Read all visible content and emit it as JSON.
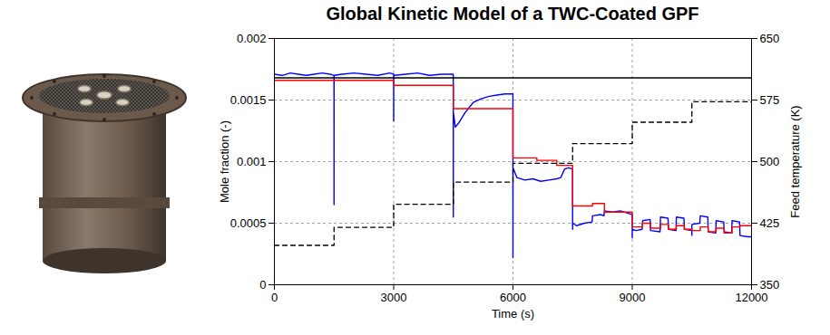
{
  "chart_data": {
    "type": "line",
    "title": "Global Kinetic Model of a TWC-Coated GPF",
    "x_label": "Time (s)",
    "y_label": "Mole fraction (-)",
    "y2_label": "Feed temperature (K)",
    "xlim": [
      0,
      12000
    ],
    "xticks": [
      0,
      3000,
      6000,
      9000,
      12000
    ],
    "ylim": [
      0,
      0.002
    ],
    "yticks": [
      0,
      0.0005,
      0.001,
      0.0015,
      0.002
    ],
    "y2lim": [
      350,
      650
    ],
    "y2ticks": [
      350,
      425,
      500,
      575,
      650
    ],
    "grid": true,
    "series": [
      {
        "color": "#0000ff",
        "line_style": "solid",
        "x": [
          0,
          200,
          400,
          600,
          800,
          1000,
          1200,
          1400,
          1499,
          1500,
          1501,
          1700,
          2000,
          2300,
          2600,
          2900,
          2999,
          3000,
          3001,
          3300,
          3600,
          3900,
          4200,
          4499,
          4500,
          4501,
          4550,
          4650,
          4800,
          5000,
          5200,
          5400,
          5600,
          5800,
          5999,
          6000,
          6001,
          6100,
          6300,
          6500,
          6700,
          6900,
          7100,
          7200,
          7300,
          7400,
          7499,
          7500,
          7501,
          7600,
          7800,
          7990,
          8000,
          8200,
          8290,
          8300,
          8500,
          8700,
          8900,
          8999,
          9000,
          9001,
          9100,
          9250,
          9260,
          9450,
          9460,
          9700,
          9710,
          9900,
          9910,
          10100,
          10110,
          10300,
          10310,
          10499,
          10500,
          10501,
          10700,
          10710,
          10900,
          10910,
          11100,
          11110,
          11300,
          11310,
          11500,
          11510,
          11700,
          11710,
          11900,
          12000
        ],
        "values": [
          0.00171,
          0.0017,
          0.00172,
          0.00171,
          0.0017,
          0.00171,
          0.00172,
          0.00171,
          0.0017,
          0.00065,
          0.0017,
          0.00171,
          0.00172,
          0.00171,
          0.0017,
          0.00172,
          0.00171,
          0.00133,
          0.0017,
          0.00171,
          0.00172,
          0.0017,
          0.00171,
          0.00171,
          0.00055,
          0.0014,
          0.00128,
          0.00132,
          0.0014,
          0.00148,
          0.00151,
          0.00153,
          0.00154,
          0.00155,
          0.00155,
          0.00022,
          0.00095,
          0.00087,
          0.00085,
          0.00086,
          0.00084,
          0.00085,
          0.00086,
          0.00087,
          0.00094,
          0.00095,
          0.00094,
          0.00045,
          0.0005,
          0.00048,
          0.0005,
          0.00051,
          0.00056,
          0.00057,
          0.00056,
          0.0006,
          0.00059,
          0.0006,
          0.00058,
          0.00057,
          0.00038,
          0.00045,
          0.00044,
          0.00045,
          0.00052,
          0.00053,
          0.00044,
          0.00043,
          0.00055,
          0.00054,
          0.00045,
          0.00044,
          0.00055,
          0.00054,
          0.00045,
          0.00044,
          0.0004,
          0.00049,
          0.0005,
          0.00056,
          0.00055,
          0.00043,
          0.00042,
          0.00052,
          0.00051,
          0.00043,
          0.00042,
          0.00052,
          0.00051,
          0.0004,
          0.00039,
          0.00039
        ]
      },
      {
        "color": "#ff0000",
        "line_style": "solid",
        "x": [
          0,
          3000,
          3000,
          4500,
          4500,
          6000,
          6000,
          6600,
          6600,
          7100,
          7100,
          7500,
          7500,
          8000,
          8000,
          8300,
          8300,
          9000,
          9000,
          9260,
          9260,
          9460,
          9460,
          9710,
          9710,
          9910,
          9910,
          10110,
          10110,
          10310,
          10310,
          10500,
          10500,
          10710,
          10710,
          10910,
          10910,
          11110,
          11110,
          11310,
          11310,
          11510,
          11510,
          11710,
          11710,
          12000
        ],
        "values": [
          0.00166,
          0.00166,
          0.00162,
          0.00162,
          0.00143,
          0.00143,
          0.00103,
          0.00103,
          0.00101,
          0.00101,
          0.00097,
          0.00097,
          0.00064,
          0.00064,
          0.00066,
          0.00066,
          0.00059,
          0.00059,
          0.00047,
          0.00047,
          0.0005,
          0.0005,
          0.00046,
          0.00046,
          0.00049,
          0.00049,
          0.00045,
          0.00045,
          0.00048,
          0.00048,
          0.00045,
          0.00045,
          0.00044,
          0.00044,
          0.00047,
          0.00047,
          0.00043,
          0.00043,
          0.00046,
          0.00046,
          0.00042,
          0.00042,
          0.00047,
          0.00047,
          0.00048,
          0.00048
        ]
      },
      {
        "color": "#000000",
        "line_style": "solid",
        "x": [
          0,
          12000
        ],
        "values": [
          0.00168,
          0.00168
        ]
      },
      {
        "color": "#000000",
        "line_style": "dashed",
        "axis": "y2",
        "x": [
          0,
          1500,
          1500,
          3000,
          3000,
          4500,
          4500,
          6000,
          6000,
          7500,
          7500,
          9000,
          9000,
          10500,
          10500,
          12000
        ],
        "values": [
          398,
          398,
          420,
          420,
          448,
          448,
          475,
          475,
          498,
          498,
          522,
          522,
          548,
          548,
          573,
          573
        ]
      }
    ]
  }
}
